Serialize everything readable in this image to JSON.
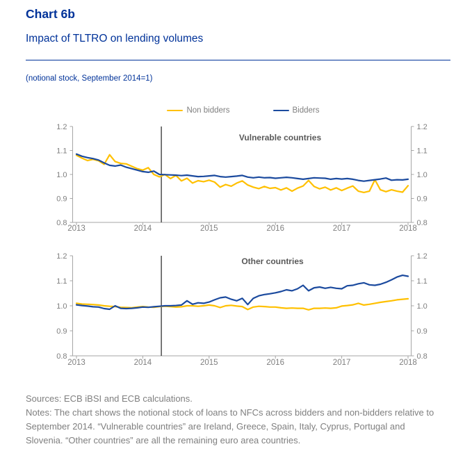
{
  "header": {
    "chart_number": "Chart 6b",
    "title": "Impact of TLTRO on lending volumes",
    "subtitle": "(notional stock, September 2014=1)"
  },
  "colors": {
    "brand_blue": "#003299",
    "bidders_line": "#1b4a9e",
    "non_bidders_line": "#ffc000",
    "axis_text": "#7f7f7f",
    "spine": "#a6a6a6",
    "panel_title": "#595959",
    "event_line": "#3f3f3f"
  },
  "chart_data": [
    {
      "type": "line",
      "title": "Vulnerable countries",
      "x_start_year": 2013,
      "x_end_year": 2018,
      "x_unit": "monthly",
      "ylim": [
        0.8,
        1.2
      ],
      "yticks": [
        "0.8",
        "0.9",
        "1.0",
        "1.1",
        "1.2"
      ],
      "xticks": [
        "2013",
        "2014",
        "2015",
        "2016",
        "2017",
        "2018"
      ],
      "event_line_x": 2014.28,
      "grid": false,
      "legend_position": "top",
      "series": [
        {
          "name": "Non bidders",
          "color": "#ffc000",
          "values": [
            1.08,
            1.068,
            1.058,
            1.063,
            1.057,
            1.042,
            1.082,
            1.054,
            1.046,
            1.044,
            1.034,
            1.024,
            1.018,
            1.028,
            1.0,
            0.99,
            1.0,
            0.983,
            0.996,
            0.973,
            0.984,
            0.964,
            0.974,
            0.97,
            0.976,
            0.968,
            0.947,
            0.958,
            0.951,
            0.964,
            0.973,
            0.956,
            0.947,
            0.941,
            0.95,
            0.942,
            0.945,
            0.935,
            0.944,
            0.93,
            0.943,
            0.952,
            0.975,
            0.95,
            0.94,
            0.947,
            0.935,
            0.944,
            0.933,
            0.943,
            0.952,
            0.93,
            0.925,
            0.93,
            0.978,
            0.936,
            0.928,
            0.936,
            0.93,
            0.926,
            0.953
          ]
        },
        {
          "name": "Bidders",
          "color": "#1b4a9e",
          "values": [
            1.085,
            1.076,
            1.07,
            1.066,
            1.06,
            1.048,
            1.038,
            1.035,
            1.039,
            1.03,
            1.024,
            1.018,
            1.012,
            1.009,
            1.014,
            1.0,
            0.999,
            0.998,
            0.997,
            0.995,
            0.997,
            0.994,
            0.991,
            0.992,
            0.994,
            0.996,
            0.991,
            0.989,
            0.991,
            0.993,
            0.996,
            0.989,
            0.986,
            0.989,
            0.986,
            0.987,
            0.984,
            0.986,
            0.988,
            0.986,
            0.983,
            0.98,
            0.983,
            0.986,
            0.985,
            0.984,
            0.98,
            0.983,
            0.981,
            0.983,
            0.98,
            0.975,
            0.972,
            0.975,
            0.978,
            0.981,
            0.985,
            0.976,
            0.978,
            0.977,
            0.98
          ]
        }
      ]
    },
    {
      "type": "line",
      "title": "Other countries",
      "x_start_year": 2013,
      "x_end_year": 2018,
      "x_unit": "monthly",
      "ylim": [
        0.8,
        1.2
      ],
      "yticks": [
        "0.8",
        "0.9",
        "1.0",
        "1.1",
        "1.2"
      ],
      "xticks": [
        "2013",
        "2014",
        "2015",
        "2016",
        "2017",
        "2018"
      ],
      "event_line_x": 2014.28,
      "grid": false,
      "legend_position": "none",
      "series": [
        {
          "name": "Non bidders",
          "color": "#ffc000",
          "values": [
            1.01,
            1.007,
            1.006,
            1.005,
            1.003,
            1.0,
            0.998,
            0.997,
            0.994,
            0.993,
            0.992,
            0.995,
            0.997,
            0.995,
            0.994,
            0.997,
            0.998,
            0.997,
            0.995,
            0.996,
            1.0,
            1.0,
            0.998,
            1.0,
            1.003,
            1.0,
            0.993,
            1.0,
            1.002,
            0.999,
            0.997,
            0.985,
            0.995,
            0.998,
            0.997,
            0.995,
            0.995,
            0.992,
            0.99,
            0.991,
            0.99,
            0.99,
            0.984,
            0.99,
            0.99,
            0.991,
            0.99,
            0.992,
            0.999,
            1.001,
            1.004,
            1.01,
            1.003,
            1.006,
            1.01,
            1.014,
            1.017,
            1.02,
            1.024,
            1.026,
            1.028
          ]
        },
        {
          "name": "Bidders",
          "color": "#1b4a9e",
          "values": [
            1.004,
            1.001,
            0.999,
            0.996,
            0.995,
            0.989,
            0.986,
            1.0,
            0.99,
            0.989,
            0.99,
            0.992,
            0.995,
            0.994,
            0.996,
            0.998,
            1.0,
            1.0,
            1.001,
            1.003,
            1.02,
            1.006,
            1.012,
            1.01,
            1.015,
            1.024,
            1.032,
            1.035,
            1.026,
            1.02,
            1.03,
            1.005,
            1.03,
            1.04,
            1.045,
            1.048,
            1.052,
            1.057,
            1.064,
            1.06,
            1.068,
            1.082,
            1.06,
            1.072,
            1.075,
            1.07,
            1.074,
            1.07,
            1.068,
            1.08,
            1.082,
            1.088,
            1.092,
            1.084,
            1.082,
            1.086,
            1.094,
            1.104,
            1.115,
            1.122,
            1.118
          ]
        }
      ]
    }
  ],
  "footer": {
    "sources": "Sources: ECB iBSI and ECB calculations.",
    "notes": "Notes: The chart shows the notional stock of loans to NFCs across bidders and non-bidders relative to September 2014. “Vulnerable countries” are Ireland, Greece, Spain, Italy, Cyprus, Portugal and Slovenia. “Other countries” are all the remaining euro area countries."
  }
}
